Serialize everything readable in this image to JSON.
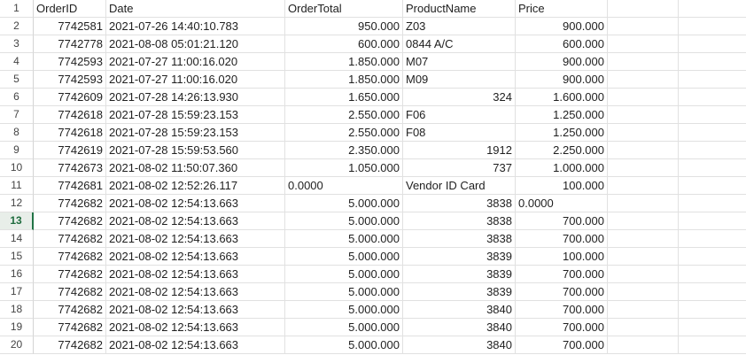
{
  "sheet": {
    "headers": [
      "OrderID",
      "Date",
      "OrderTotal",
      "ProductName",
      "Price"
    ],
    "row_numbers": [
      "1",
      "2",
      "3",
      "4",
      "5",
      "6",
      "7",
      "8",
      "9",
      "10",
      "11",
      "12",
      "13",
      "14",
      "15",
      "16",
      "17",
      "18",
      "19",
      "20"
    ],
    "active_row": "13",
    "rows": [
      [
        "7742581",
        "2021-07-26 14:40:10.783",
        "950.000",
        "Z03",
        "900.000"
      ],
      [
        "7742778",
        "2021-08-08 05:01:21.120",
        "600.000",
        "0844 A/C",
        "600.000"
      ],
      [
        "7742593",
        "2021-07-27 11:00:16.020",
        "1.850.000",
        "M07",
        "900.000"
      ],
      [
        "7742593",
        "2021-07-27 11:00:16.020",
        "1.850.000",
        "M09",
        "900.000"
      ],
      [
        "7742609",
        "2021-07-28 14:26:13.930",
        "1.650.000",
        "324",
        "1.600.000"
      ],
      [
        "7742618",
        "2021-07-28 15:59:23.153",
        "2.550.000",
        "F06",
        "1.250.000"
      ],
      [
        "7742618",
        "2021-07-28 15:59:23.153",
        "2.550.000",
        "F08",
        "1.250.000"
      ],
      [
        "7742619",
        "2021-07-28 15:59:53.560",
        "2.350.000",
        "1912",
        "2.250.000"
      ],
      [
        "7742673",
        "2021-08-02 11:50:07.360",
        "1.050.000",
        "737",
        "1.000.000"
      ],
      [
        "7742681",
        "2021-08-02 12:52:26.117",
        "0.0000",
        "Vendor ID Card",
        "100.000"
      ],
      [
        "7742682",
        "2021-08-02 12:54:13.663",
        "5.000.000",
        "3838",
        "0.0000"
      ],
      [
        "7742682",
        "2021-08-02 12:54:13.663",
        "5.000.000",
        "3838",
        "700.000"
      ],
      [
        "7742682",
        "2021-08-02 12:54:13.663",
        "5.000.000",
        "3838",
        "700.000"
      ],
      [
        "7742682",
        "2021-08-02 12:54:13.663",
        "5.000.000",
        "3839",
        "100.000"
      ],
      [
        "7742682",
        "2021-08-02 12:54:13.663",
        "5.000.000",
        "3839",
        "700.000"
      ],
      [
        "7742682",
        "2021-08-02 12:54:13.663",
        "5.000.000",
        "3839",
        "700.000"
      ],
      [
        "7742682",
        "2021-08-02 12:54:13.663",
        "5.000.000",
        "3840",
        "700.000"
      ],
      [
        "7742682",
        "2021-08-02 12:54:13.663",
        "5.000.000",
        "3840",
        "700.000"
      ],
      [
        "7742682",
        "2021-08-02 12:54:13.663",
        "5.000.000",
        "3840",
        "700.000"
      ]
    ],
    "alignments": [
      [
        "r",
        "l",
        "r",
        "l",
        "r"
      ],
      [
        "r",
        "l",
        "r",
        "l",
        "r"
      ],
      [
        "r",
        "l",
        "r",
        "l",
        "r"
      ],
      [
        "r",
        "l",
        "r",
        "l",
        "r"
      ],
      [
        "r",
        "l",
        "r",
        "r",
        "r"
      ],
      [
        "r",
        "l",
        "r",
        "l",
        "r"
      ],
      [
        "r",
        "l",
        "r",
        "l",
        "r"
      ],
      [
        "r",
        "l",
        "r",
        "r",
        "r"
      ],
      [
        "r",
        "l",
        "r",
        "r",
        "r"
      ],
      [
        "r",
        "l",
        "l",
        "l",
        "r"
      ],
      [
        "r",
        "l",
        "r",
        "r",
        "l"
      ],
      [
        "r",
        "l",
        "r",
        "r",
        "r"
      ],
      [
        "r",
        "l",
        "r",
        "r",
        "r"
      ],
      [
        "r",
        "l",
        "r",
        "r",
        "r"
      ],
      [
        "r",
        "l",
        "r",
        "r",
        "r"
      ],
      [
        "r",
        "l",
        "r",
        "r",
        "r"
      ],
      [
        "r",
        "l",
        "r",
        "r",
        "r"
      ],
      [
        "r",
        "l",
        "r",
        "r",
        "r"
      ],
      [
        "r",
        "l",
        "r",
        "r",
        "r"
      ]
    ]
  }
}
